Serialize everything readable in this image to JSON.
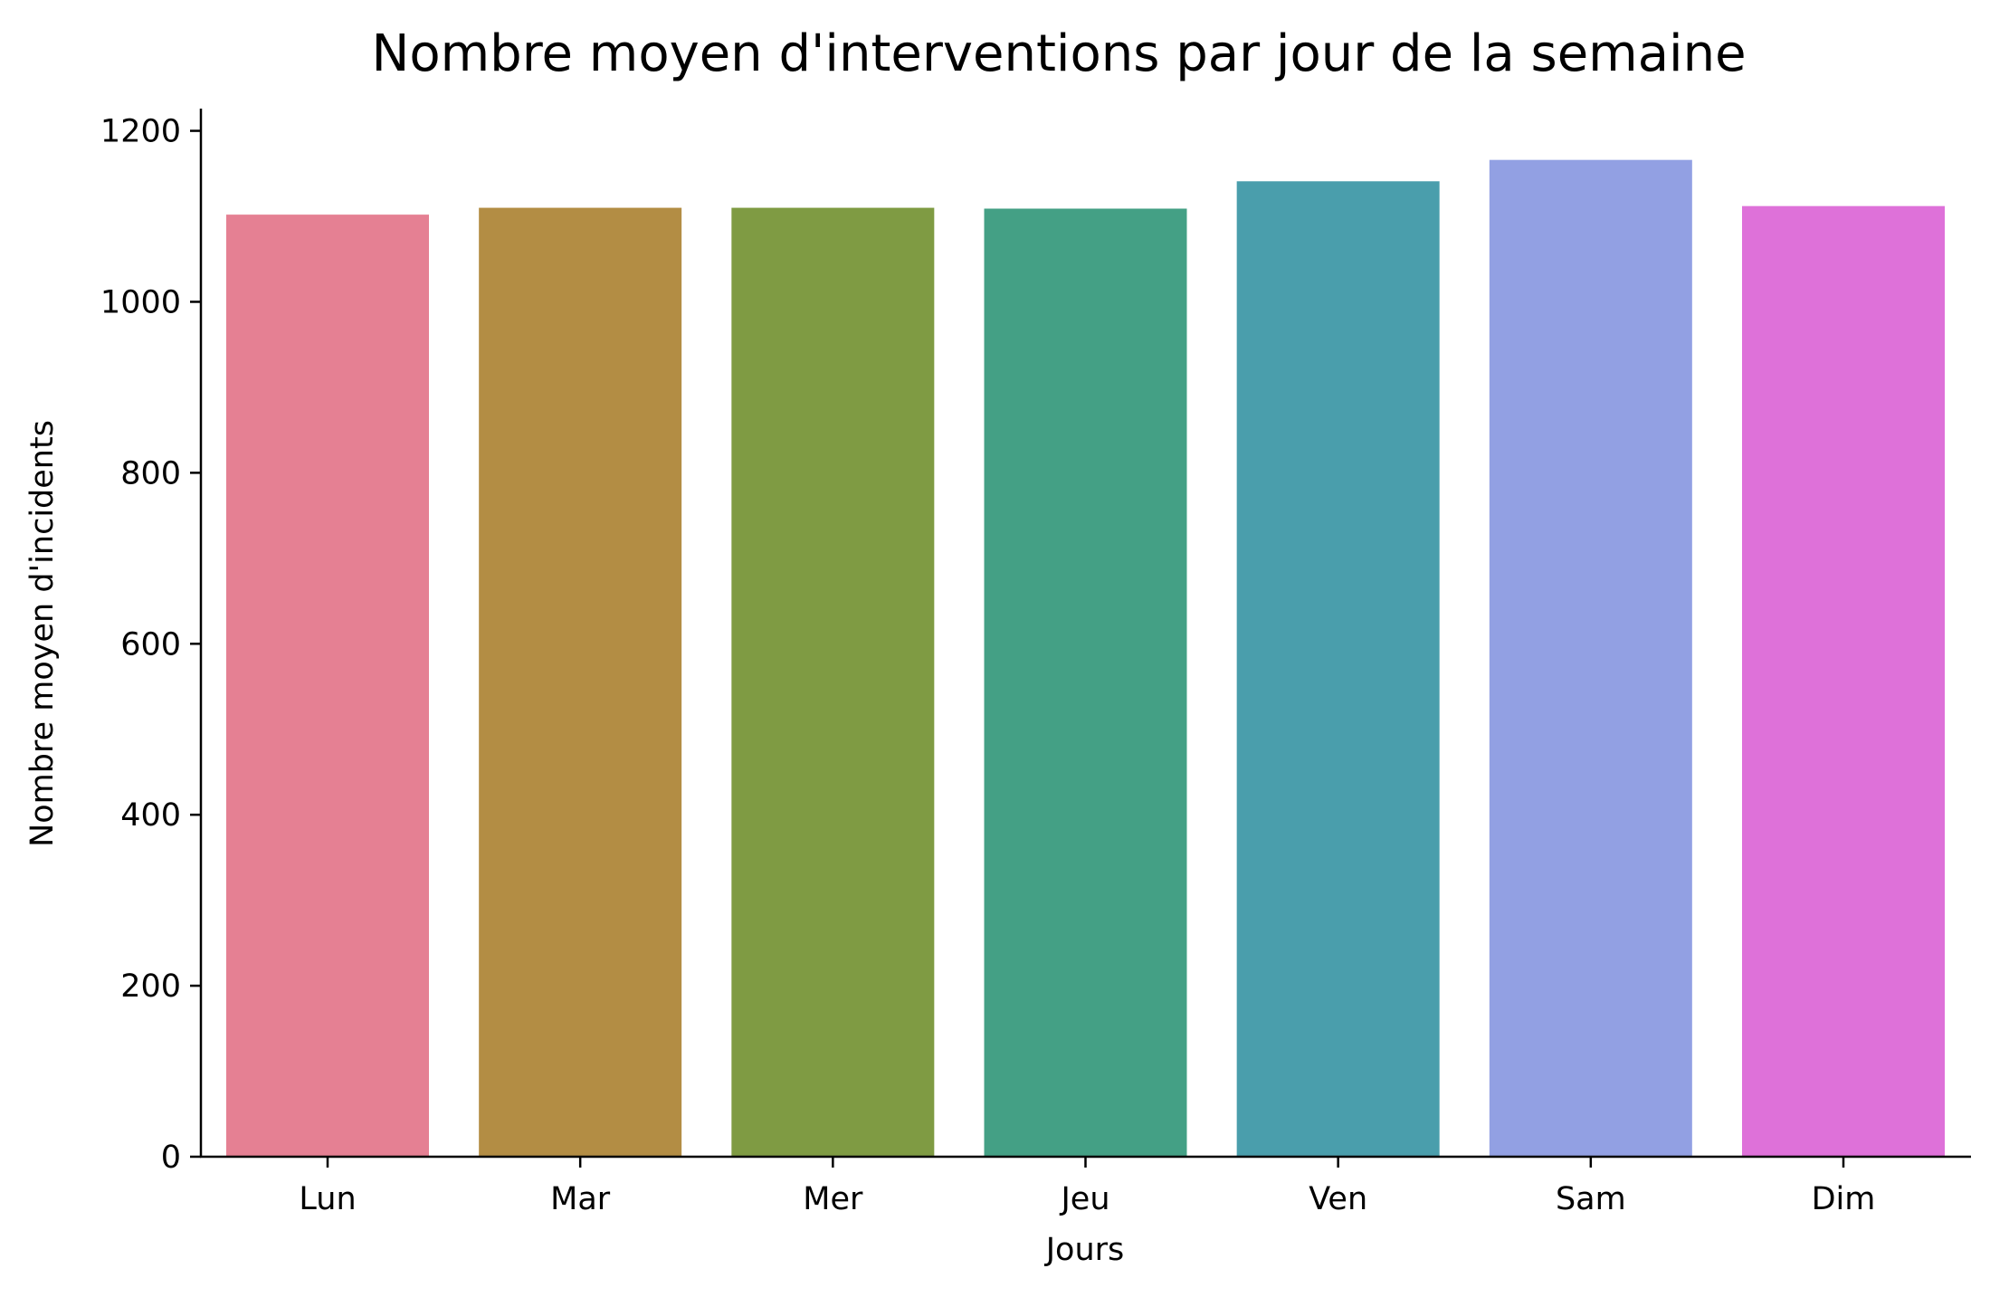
{
  "chart_data": {
    "type": "bar",
    "title": "Nombre moyen d'interventions par jour de la semaine",
    "xlabel": "Jours",
    "ylabel": "Nombre moyen d'incidents",
    "categories": [
      "Lun",
      "Mar",
      "Mer",
      "Jeu",
      "Ven",
      "Sam",
      "Dim"
    ],
    "values": [
      1102,
      1110,
      1110,
      1109,
      1141,
      1166,
      1112
    ],
    "colors": [
      "#e58093",
      "#b38d44",
      "#7f9b43",
      "#44a085",
      "#4a9eac",
      "#92a0e3",
      "#de71d9"
    ],
    "ylim": [
      0,
      1226
    ],
    "yticks": [
      0,
      200,
      400,
      600,
      800,
      1000,
      1200
    ],
    "ytick_labels": [
      "0",
      "200",
      "400",
      "600",
      "800",
      "1000",
      "1200"
    ],
    "grid": false,
    "legend": "none"
  }
}
